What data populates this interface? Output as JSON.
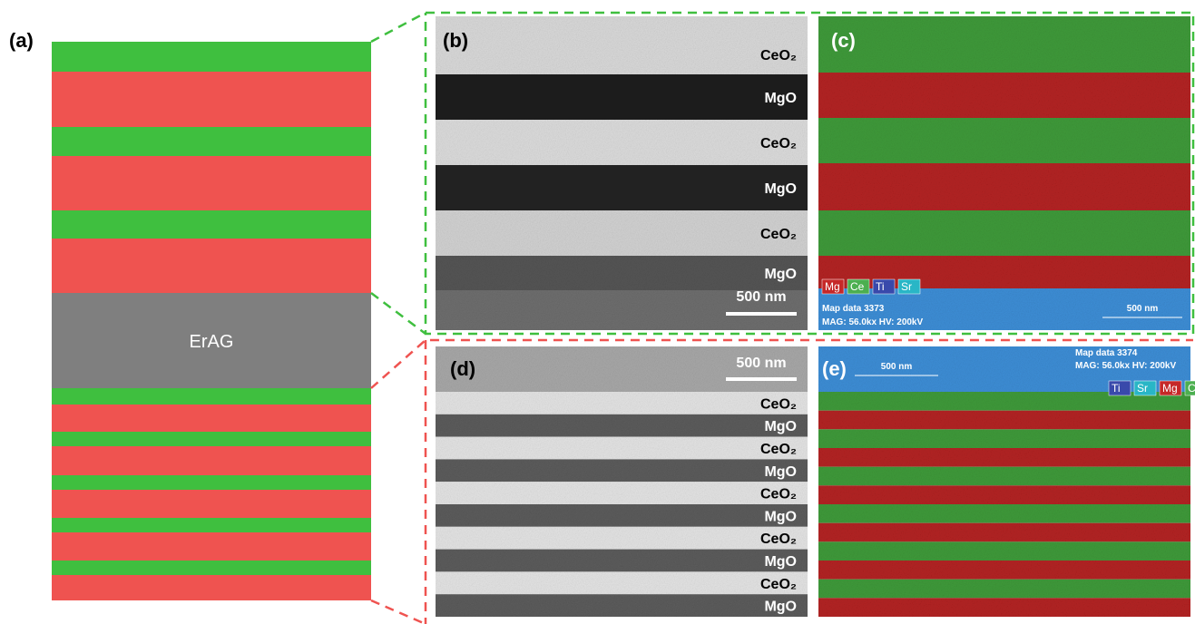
{
  "panels": {
    "a": {
      "label": "(a)",
      "substrate": "ErAG"
    },
    "b": {
      "label": "(b)",
      "layers": [
        "CeO₂",
        "MgO",
        "CeO₂",
        "MgO",
        "CeO₂",
        "MgO"
      ],
      "scale_bar": "500 nm"
    },
    "c": {
      "label": "(c)",
      "legend": [
        "Mg",
        "Ce",
        "Ti",
        "Sr"
      ],
      "map_data": "Map data 3373",
      "mag": "MAG: 56.0kx  HV: 200kV",
      "scale_bar": "500 nm"
    },
    "d": {
      "label": "(d)",
      "scale_bar": "500 nm",
      "layers": [
        "CeO₂",
        "MgO",
        "CeO₂",
        "MgO",
        "CeO₂",
        "MgO",
        "CeO₂",
        "MgO",
        "CeO₂",
        "MgO"
      ]
    },
    "e": {
      "label": "(e)",
      "map_data": "Map data 3374",
      "mag": "MAG: 56.0kx  HV: 200kV",
      "scale_bar": "500 nm",
      "legend": [
        "Ti",
        "Sr",
        "Mg",
        "Ce"
      ]
    }
  }
}
